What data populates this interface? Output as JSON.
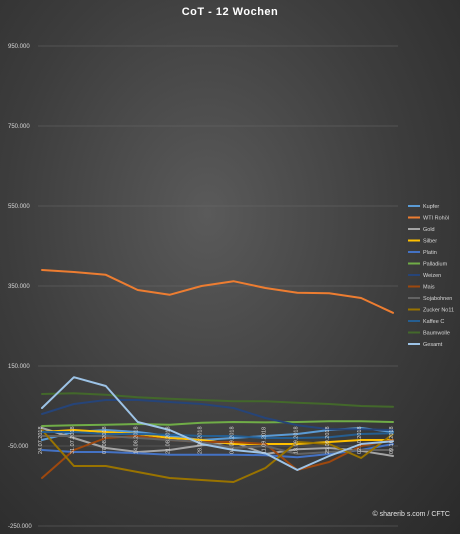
{
  "chart_data": {
    "type": "line",
    "title": "CoT - 12 Wochen",
    "source": "© sharerib s.com / CFTC",
    "ylim": [
      -250000,
      950000
    ],
    "yticks": [
      "-250.000",
      "-50.000",
      "150.000",
      "350.000",
      "550.000",
      "750.000",
      "950.000"
    ],
    "ytick_values": [
      -250000,
      -50000,
      150000,
      350000,
      550000,
      750000,
      950000
    ],
    "x": [
      "24.07.2018",
      "31.07.2018",
      "07.08.2018",
      "14.08.2018",
      "21.08.2018",
      "28.08.2018",
      "04.09.2018",
      "11.09.2018",
      "18.09.2018",
      "25.09.2018",
      "02.10.2018",
      "09.10.2018"
    ],
    "grid": true,
    "legend_position": "right",
    "series": [
      {
        "name": "Kupfer",
        "color": "#5b9bd5",
        "values": [
          -35000,
          -15000,
          -10000,
          -15000,
          -25000,
          -35000,
          -30000,
          -25000,
          -20000,
          -10000,
          -5000,
          -15000
        ]
      },
      {
        "name": "WTI Rohöl",
        "color": "#ed7d31",
        "values": [
          390000,
          385000,
          378000,
          340000,
          328000,
          350000,
          362000,
          345000,
          333000,
          332000,
          320000,
          283000
        ]
      },
      {
        "name": "Gold",
        "color": "#a5a5a5",
        "values": [
          -5000,
          -30000,
          -55000,
          -65000,
          -60000,
          -48000,
          -40000,
          -70000,
          -58000,
          -55000,
          -62000,
          -75000
        ]
      },
      {
        "name": "Silber",
        "color": "#ffc000",
        "values": [
          -15000,
          -10000,
          -15000,
          -20000,
          -30000,
          -35000,
          -45000,
          -45000,
          -45000,
          -40000,
          -35000,
          -35000
        ]
      },
      {
        "name": "Platin",
        "color": "#4472c4",
        "values": [
          -60000,
          -65000,
          -65000,
          -68000,
          -72000,
          -72000,
          -72000,
          -73000,
          -78000,
          -70000,
          -60000,
          -45000
        ]
      },
      {
        "name": "Palladium",
        "color": "#70ad47",
        "values": [
          0,
          2000,
          3000,
          5000,
          3000,
          8000,
          10000,
          9000,
          10000,
          12000,
          12000,
          10000
        ]
      },
      {
        "name": "Weizen",
        "color": "#264478",
        "values": [
          30000,
          55000,
          65000,
          65000,
          60000,
          55000,
          45000,
          20000,
          2000,
          -8000,
          -8000,
          -10000
        ]
      },
      {
        "name": "Mais",
        "color": "#9e480e",
        "values": [
          -130000,
          -60000,
          -30000,
          -25000,
          -35000,
          -40000,
          -40000,
          -45000,
          -110000,
          -90000,
          -50000,
          -35000
        ]
      },
      {
        "name": "Sojabohnen",
        "color": "#636363",
        "values": [
          -25000,
          -25000,
          -25000,
          -30000,
          -35000,
          -40000,
          -55000,
          -50000,
          -70000,
          -65000,
          -60000,
          -60000
        ]
      },
      {
        "name": "Zucker No11",
        "color": "#997300",
        "values": [
          -10000,
          -100000,
          -100000,
          -115000,
          -130000,
          -135000,
          -140000,
          -105000,
          -40000,
          -45000,
          -80000,
          -20000
        ]
      },
      {
        "name": "Kaffee C",
        "color": "#255e91",
        "values": [
          -15000,
          -15000,
          -20000,
          -20000,
          -22000,
          -25000,
          -25000,
          -30000,
          -30000,
          -28000,
          -20000,
          -18000
        ]
      },
      {
        "name": "Baumwolle",
        "color": "#43682b",
        "values": [
          80000,
          82000,
          78000,
          72000,
          68000,
          65000,
          62000,
          62000,
          58000,
          55000,
          50000,
          48000
        ]
      },
      {
        "name": "Gesamt",
        "color": "#9dc3e6",
        "values": [
          45000,
          122000,
          100000,
          10000,
          -10000,
          -45000,
          -60000,
          -68000,
          -110000,
          -75000,
          -45000,
          -38000
        ]
      }
    ]
  }
}
